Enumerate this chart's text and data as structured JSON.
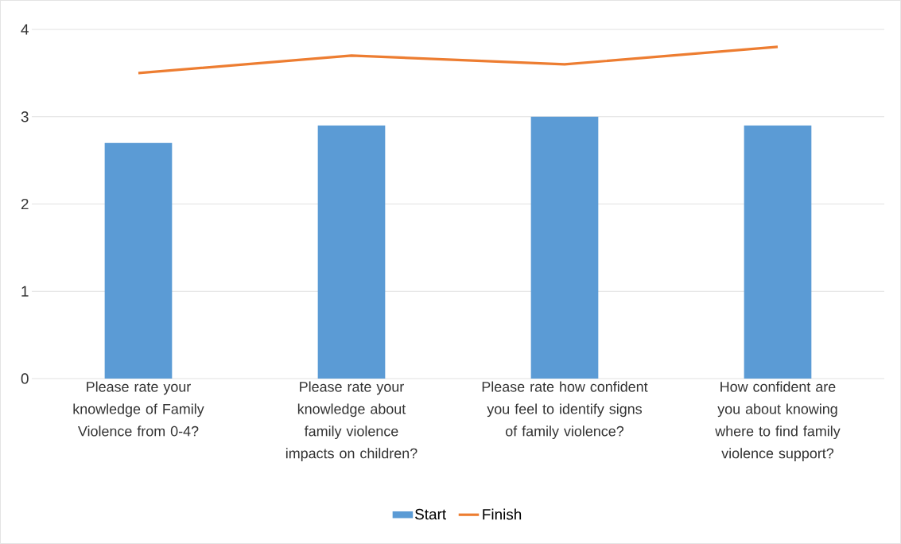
{
  "chart_data": {
    "type": "bar",
    "categories": [
      "Please rate your knowledge of Family Violence from 0-4?",
      "Please rate your knowledge about family violence impacts on children?",
      "Please rate how confident you feel to identify signs of family violence?",
      "How confident are you about knowing where to find family violence support?"
    ],
    "series": [
      {
        "name": "Start",
        "color": "#5b9bd5",
        "values": [
          2.7,
          2.9,
          3.0,
          2.9
        ]
      },
      {
        "name": "Finish",
        "type": "line",
        "color": "#ed7d31",
        "values": [
          3.5,
          3.7,
          3.6,
          3.8
        ]
      }
    ],
    "ylim": [
      0,
      4
    ],
    "yticks": [
      0,
      1,
      2,
      3,
      4
    ],
    "grid": "y",
    "legend": "bottom"
  }
}
